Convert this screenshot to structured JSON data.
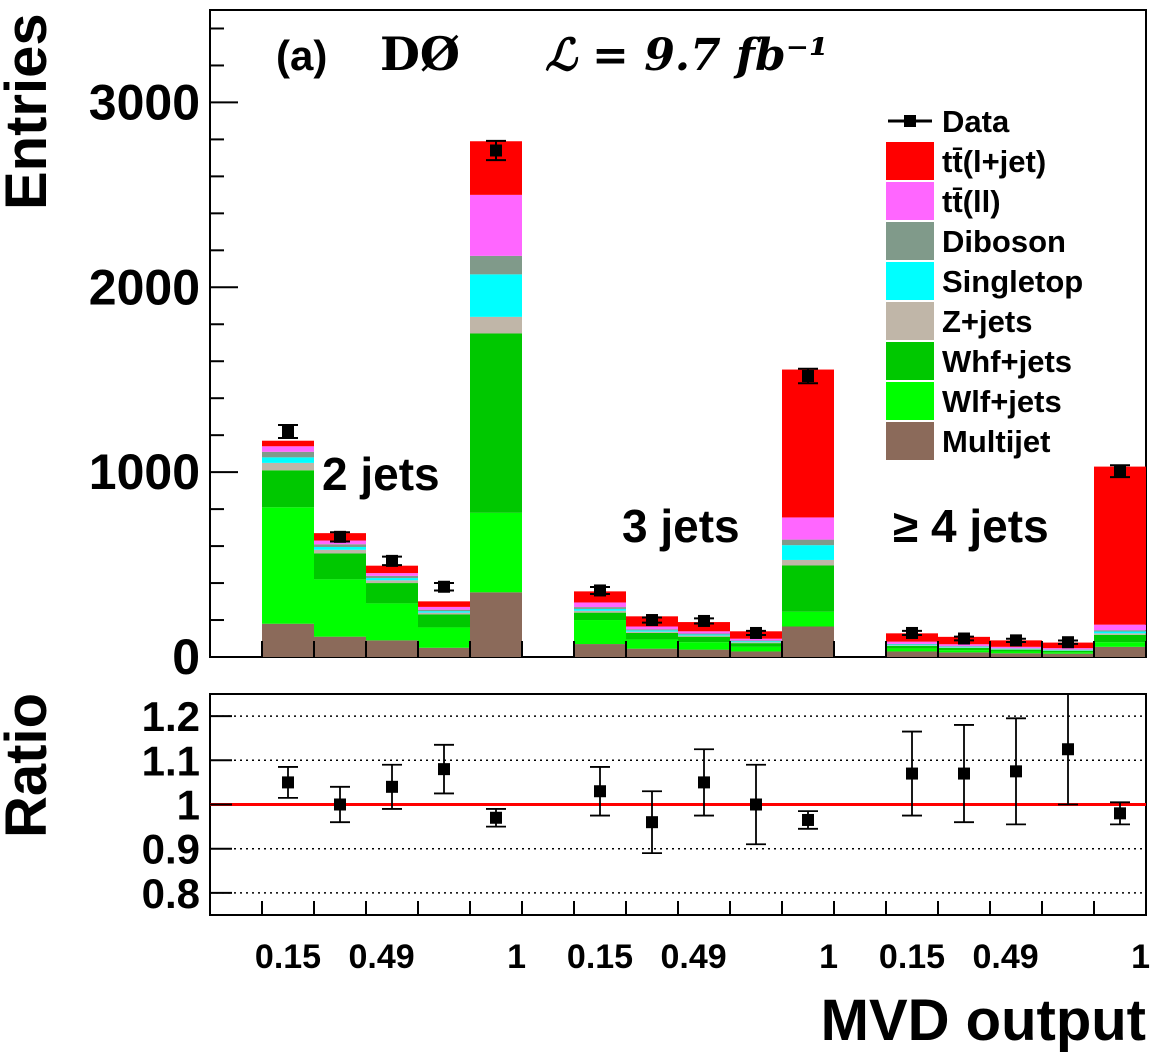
{
  "chart_data": {
    "type": "bar",
    "stacked": true,
    "experiment_label": "(a)",
    "experiment": "DØ",
    "luminosity": "ℒ = 9.7 fb⁻¹",
    "xlabel": "MVD output",
    "ylabel": "Entries",
    "ratio_ylabel": "Ratio",
    "ylim": [
      0,
      3500
    ],
    "yticks": [
      "0",
      "1000",
      "2000",
      "3000"
    ],
    "ratio_ylim": [
      0.75,
      1.25
    ],
    "ratio_yticks": [
      "0.8",
      "0.9",
      "1",
      "1.1",
      "1.2"
    ],
    "ratio_grid": true,
    "ratio_reference_line": 1,
    "xtick_labels": [
      "0.15",
      "0.49",
      "1",
      "0.15",
      "0.49",
      "1",
      "0.15",
      "0.49",
      "1"
    ],
    "regions": [
      "2 jets",
      "3 jets",
      "≥ 4 jets"
    ],
    "legend_position": "top-right",
    "legend": [
      "Data",
      "tt̄(l+jet)",
      "tt̄(ll)",
      "Diboson",
      "Singletop",
      "Z+jets",
      "Whf+jets",
      "Wlf+jets",
      "Multijet"
    ],
    "categories": [
      "2j-1",
      "2j-2",
      "2j-3",
      "2j-4",
      "2j-5",
      "3j-1",
      "3j-2",
      "3j-3",
      "3j-4",
      "3j-5",
      "4j-1",
      "4j-2",
      "4j-3",
      "4j-4",
      "4j-5"
    ],
    "series": [
      {
        "name": "Multijet",
        "color": "#8b6a5a",
        "values": [
          180,
          110,
          90,
          50,
          350,
          70,
          45,
          40,
          30,
          165,
          30,
          25,
          20,
          18,
          55
        ]
      },
      {
        "name": "Wlf+jets",
        "color": "#00ff00",
        "values": [
          630,
          310,
          200,
          110,
          430,
          130,
          50,
          40,
          25,
          80,
          15,
          12,
          10,
          8,
          25
        ]
      },
      {
        "name": "Whf+jets",
        "color": "#00c800",
        "values": [
          200,
          140,
          110,
          70,
          970,
          40,
          35,
          30,
          20,
          250,
          15,
          12,
          10,
          8,
          40
        ]
      },
      {
        "name": "Z+jets",
        "color": "#c0b6a8",
        "values": [
          40,
          20,
          15,
          10,
          90,
          10,
          7,
          6,
          5,
          30,
          3,
          3,
          2,
          2,
          8
        ]
      },
      {
        "name": "Singletop",
        "color": "#00ffff",
        "values": [
          30,
          15,
          12,
          8,
          230,
          10,
          7,
          6,
          5,
          80,
          5,
          4,
          3,
          3,
          10
        ]
      },
      {
        "name": "Diboson",
        "color": "#809a8a",
        "values": [
          30,
          15,
          12,
          8,
          100,
          10,
          6,
          5,
          4,
          30,
          3,
          3,
          2,
          2,
          7
        ]
      },
      {
        "name": "tt̄(ll)",
        "color": "#ff66ff",
        "values": [
          30,
          20,
          15,
          15,
          330,
          25,
          15,
          12,
          10,
          120,
          12,
          10,
          8,
          7,
          30
        ]
      },
      {
        "name": "tt̄(l+jet)",
        "color": "#ff0000",
        "values": [
          30,
          40,
          40,
          30,
          290,
          60,
          55,
          50,
          40,
          800,
          45,
          40,
          35,
          30,
          855
        ]
      }
    ],
    "data_points": {
      "name": "Data",
      "values": [
        1220,
        650,
        520,
        380,
        2740,
        360,
        200,
        195,
        130,
        1520,
        130,
        100,
        90,
        80,
        1005
      ],
      "errors": [
        35,
        25,
        23,
        20,
        52,
        19,
        14,
        14,
        11,
        39,
        11,
        10,
        9,
        9,
        32
      ]
    },
    "ratio": {
      "values": [
        1.05,
        1.0,
        1.04,
        1.08,
        0.97,
        1.03,
        0.96,
        1.05,
        1.0,
        0.965,
        1.07,
        1.07,
        1.075,
        1.125,
        0.98
      ],
      "errors": [
        0.035,
        0.04,
        0.05,
        0.055,
        0.02,
        0.055,
        0.07,
        0.075,
        0.09,
        0.02,
        0.095,
        0.11,
        0.12,
        0.125,
        0.025
      ]
    }
  }
}
